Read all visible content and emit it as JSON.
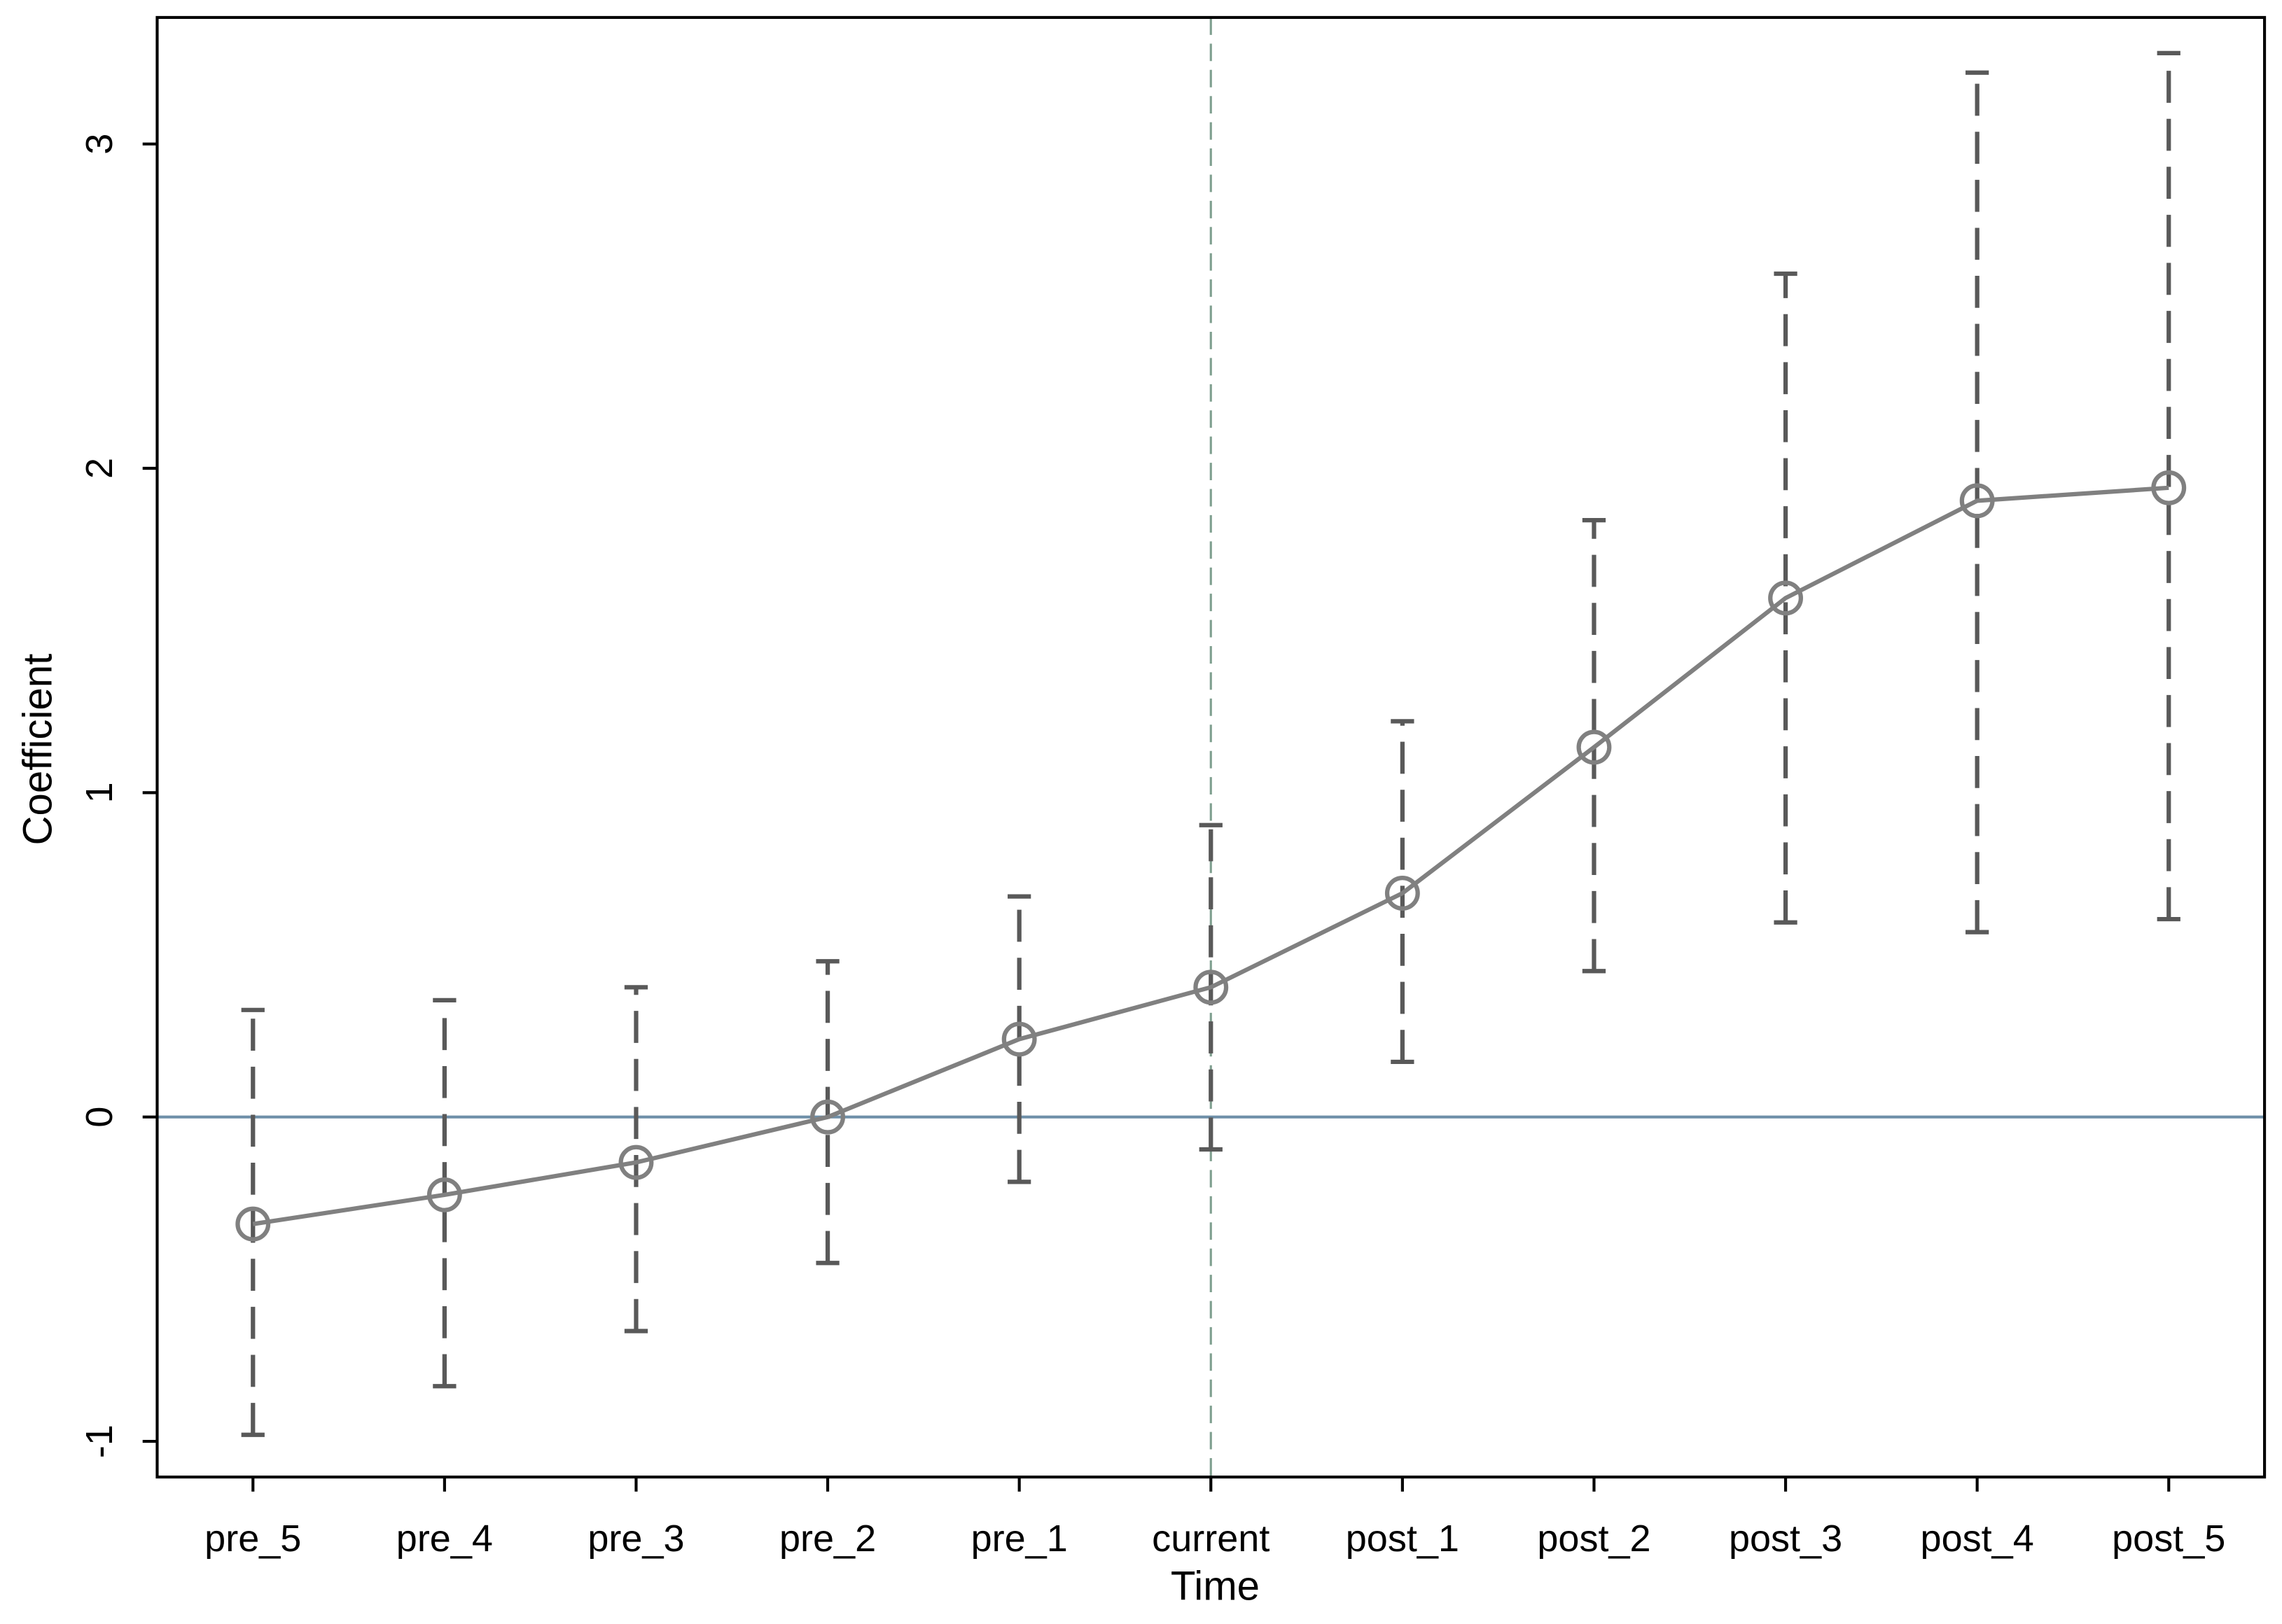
{
  "chart_data": {
    "type": "line",
    "x_label": "Time",
    "y_label": "Coefficient",
    "categories": [
      "pre_5",
      "pre_4",
      "pre_3",
      "pre_2",
      "pre_1",
      "current",
      "post_1",
      "post_2",
      "post_3",
      "post_4",
      "post_5"
    ],
    "series": [
      {
        "color": "#808080",
        "values": [
          -0.33,
          -0.24,
          -0.14,
          0.0,
          0.24,
          0.4,
          0.69,
          1.14,
          1.6,
          1.9,
          1.94
        ],
        "lower": [
          -0.98,
          -0.83,
          -0.66,
          -0.45,
          -0.2,
          -0.1,
          0.17,
          0.45,
          0.6,
          0.57,
          0.61
        ],
        "upper": [
          0.33,
          0.36,
          0.4,
          0.48,
          0.68,
          0.9,
          1.22,
          1.84,
          2.6,
          3.22,
          3.28
        ],
        "error_color": "#595959"
      }
    ],
    "ylim": [
      -1.11,
      3.39
    ],
    "yticks": [
      -1,
      0,
      1,
      2,
      3
    ],
    "hline": 0,
    "hline_color": "#6e8fa8",
    "vline": "current",
    "vline_color": "#7f9f8f",
    "grid": false
  }
}
